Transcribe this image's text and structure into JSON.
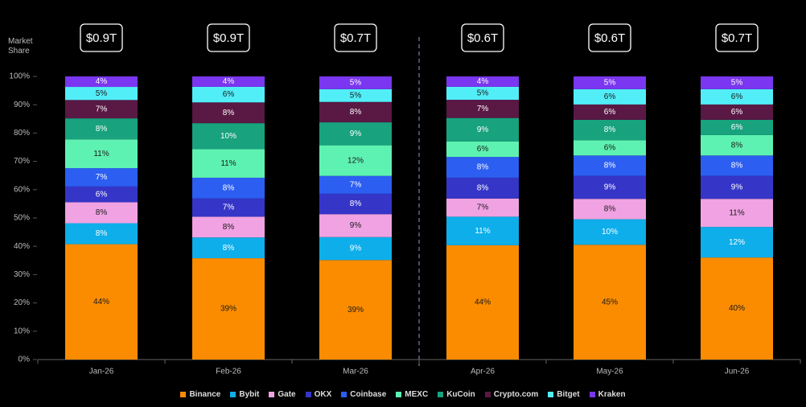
{
  "chart_data": {
    "type": "bar",
    "stacking": "percent",
    "ylabel": "Market Share",
    "categories": [
      "Jan-26",
      "Feb-26",
      "Mar-26",
      "Apr-26",
      "May-26",
      "Jun-26"
    ],
    "volumes": {
      "values": [
        0.9,
        0.9,
        0.7,
        0.6,
        0.6,
        0.7
      ],
      "value_labels": [
        "$0.9T",
        "$0.9T",
        "$0.7T",
        "$0.6T",
        "$0.6T",
        "$0.7T"
      ]
    },
    "ylim": [
      0,
      100
    ],
    "yticks": [
      {
        "value": 0,
        "label": "0%"
      },
      {
        "value": 10,
        "label": "10%"
      },
      {
        "value": 20,
        "label": "20%"
      },
      {
        "value": 30,
        "label": "30%"
      },
      {
        "value": 40,
        "label": "40%"
      },
      {
        "value": 50,
        "label": "50%"
      },
      {
        "value": 60,
        "label": "60%"
      },
      {
        "value": 70,
        "label": "70%"
      },
      {
        "value": 80,
        "label": "80%"
      },
      {
        "value": 90,
        "label": "90%"
      },
      {
        "value": 100,
        "label": "100%"
      }
    ],
    "series": [
      {
        "name": "Binance",
        "color": "#fb8c00",
        "values": [
          44,
          39,
          39,
          44,
          45,
          40
        ],
        "value_labels": [
          "44%",
          "39%",
          "39%",
          "44%",
          "45%",
          "40%"
        ]
      },
      {
        "name": "Bybit",
        "color": "#0eaeea",
        "values": [
          8,
          8,
          9,
          11,
          10,
          12
        ],
        "value_labels": [
          "8%",
          "8%",
          "9%",
          "11%",
          "10%",
          "12%"
        ]
      },
      {
        "name": "Gate",
        "color": "#f0a2e2",
        "values": [
          8,
          8,
          9,
          7,
          8,
          11
        ],
        "value_labels": [
          "8%",
          "8%",
          "9%",
          "7%",
          "8%",
          "11%"
        ]
      },
      {
        "name": "OKX",
        "color": "#3535c8",
        "values": [
          6,
          7,
          8,
          8,
          9,
          9
        ],
        "value_labels": [
          "6%",
          "7%",
          "8%",
          "8%",
          "9%",
          "9%"
        ]
      },
      {
        "name": "Coinbase",
        "color": "#2c5ef2",
        "values": [
          7,
          8,
          7,
          8,
          8,
          8
        ],
        "value_labels": [
          "7%",
          "8%",
          "7%",
          "8%",
          "8%",
          "8%"
        ]
      },
      {
        "name": "MEXC",
        "color": "#5ef2b2",
        "values": [
          11,
          11,
          12,
          6,
          6,
          8
        ],
        "value_labels": [
          "11%",
          "11%",
          "12%",
          "6%",
          "6%",
          "8%"
        ]
      },
      {
        "name": "KuCoin",
        "color": "#18a27e",
        "values": [
          8,
          10,
          9,
          9,
          8,
          6
        ],
        "value_labels": [
          "8%",
          "10%",
          "9%",
          "9%",
          "8%",
          "6%"
        ]
      },
      {
        "name": "Crypto.com",
        "color": "#5a1844",
        "values": [
          7,
          8,
          8,
          7,
          6,
          6
        ],
        "value_labels": [
          "7%",
          "8%",
          "8%",
          "7%",
          "6%",
          "6%"
        ]
      },
      {
        "name": "Bitget",
        "color": "#52eef8",
        "values": [
          5,
          6,
          5,
          5,
          6,
          6
        ],
        "value_labels": [
          "5%",
          "6%",
          "5%",
          "5%",
          "6%",
          "6%"
        ]
      },
      {
        "name": "Kraken",
        "color": "#7a36f0",
        "values": [
          4,
          4,
          5,
          4,
          5,
          5
        ],
        "value_labels": [
          "4%",
          "4%",
          "5%",
          "4%",
          "5%",
          "5%"
        ]
      }
    ]
  }
}
